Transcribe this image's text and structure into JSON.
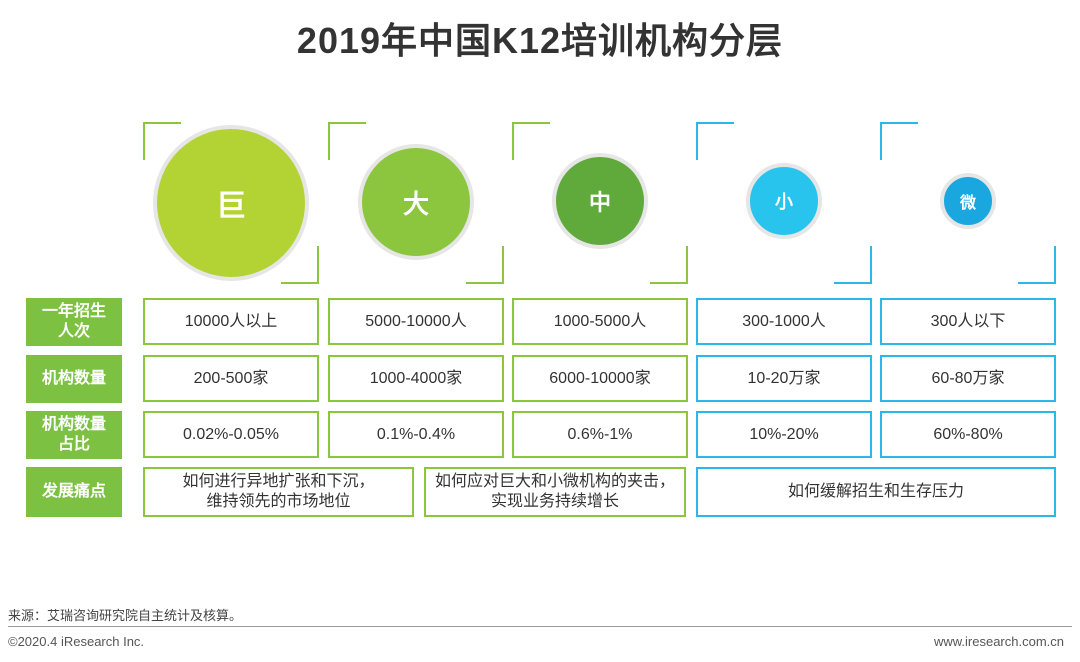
{
  "title": "2019年中国K12培训机构分层",
  "tiers": [
    {
      "label": "巨",
      "color": "#b3d334",
      "frame_color": "#8cc63f"
    },
    {
      "label": "大",
      "color": "#8cc63f",
      "frame_color": "#8cc63f"
    },
    {
      "label": "中",
      "color": "#5faa3b",
      "frame_color": "#8cc63f"
    },
    {
      "label": "小",
      "color": "#29c4ee",
      "frame_color": "#29b8e8"
    },
    {
      "label": "微",
      "color": "#1aa7e0",
      "frame_color": "#29b8e8"
    }
  ],
  "rows": [
    {
      "label": "一年招生人次",
      "values": [
        "10000人以上",
        "5000-10000人",
        "1000-5000人",
        "300-1000人",
        "300人以下"
      ]
    },
    {
      "label": "机构数量",
      "values": [
        "200-500家",
        "1000-4000家",
        "6000-10000家",
        "10-20万家",
        "60-80万家"
      ]
    },
    {
      "label": "机构数量占比",
      "values": [
        "0.02%-0.05%",
        "0.1%-0.4%",
        "0.6%-1%",
        "10%-20%",
        "60%-80%"
      ]
    }
  ],
  "pain_points": {
    "label": "发展痛点",
    "items": [
      "如何进行异地扩张和下沉，\n维持领先的市场地位",
      "如何应对巨大和小微机构的夹击，\n实现业务持续增长",
      "如何缓解招生和生存压力"
    ]
  },
  "footer": {
    "source": "来源：艾瑞咨询研究院自主统计及核算。",
    "copyright": "©2020.4 iResearch Inc.",
    "website": "www.iresearch.com.cn"
  }
}
